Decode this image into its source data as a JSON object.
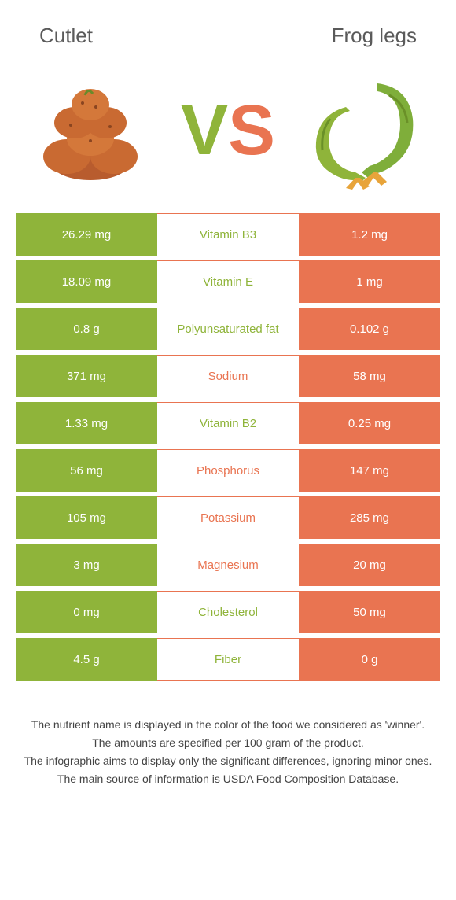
{
  "colors": {
    "left": "#8fb43a",
    "right": "#e97451",
    "row_border": "#e97451"
  },
  "header": {
    "left_title": "Cutlet",
    "right_title": "Frog legs"
  },
  "vs": {
    "v_text": "V",
    "s_text": "S",
    "v_color": "#8fb43a",
    "s_color": "#e97451",
    "fontsize": 90
  },
  "rows": [
    {
      "left": "26.29 mg",
      "label": "Vitamin B3",
      "right": "1.2 mg",
      "winner": "left"
    },
    {
      "left": "18.09 mg",
      "label": "Vitamin E",
      "right": "1 mg",
      "winner": "left"
    },
    {
      "left": "0.8 g",
      "label": "Polyunsaturated fat",
      "right": "0.102 g",
      "winner": "left"
    },
    {
      "left": "371 mg",
      "label": "Sodium",
      "right": "58 mg",
      "winner": "right"
    },
    {
      "left": "1.33 mg",
      "label": "Vitamin B2",
      "right": "0.25 mg",
      "winner": "left"
    },
    {
      "left": "56 mg",
      "label": "Phosphorus",
      "right": "147 mg",
      "winner": "right"
    },
    {
      "left": "105 mg",
      "label": "Potassium",
      "right": "285 mg",
      "winner": "right"
    },
    {
      "left": "3 mg",
      "label": "Magnesium",
      "right": "20 mg",
      "winner": "right"
    },
    {
      "left": "0 mg",
      "label": "Cholesterol",
      "right": "50 mg",
      "winner": "left"
    },
    {
      "left": "4.5 g",
      "label": "Fiber",
      "right": "0 g",
      "winner": "left"
    }
  ],
  "footnotes": [
    "The nutrient name is displayed in the color of the food we considered as 'winner'.",
    "The amounts are specified per 100 gram of the product.",
    "The infographic aims to display only the significant differences, ignoring minor ones.",
    "The main source of information is USDA Food Composition Database."
  ],
  "images": {
    "left_alt": "cutlet-stack",
    "right_alt": "frog-legs"
  }
}
